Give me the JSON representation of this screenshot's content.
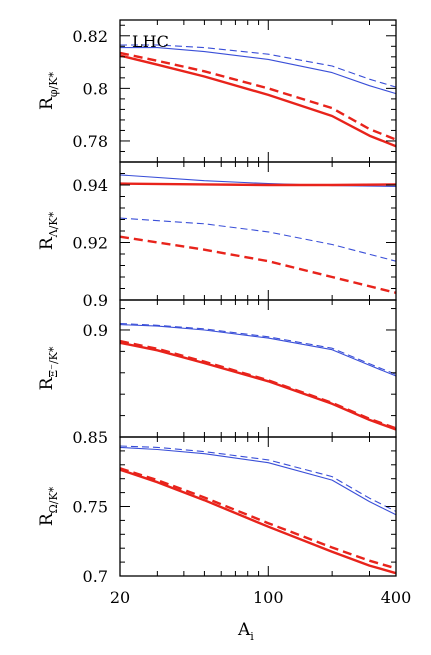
{
  "chart_data": {
    "type": "line",
    "xscale": "log",
    "xlim": [
      20,
      400
    ],
    "x_ticks": [
      20,
      100,
      400
    ],
    "x_tick_labels": [
      "20",
      "100",
      "400"
    ],
    "xlabel": {
      "main": "A",
      "sub": "i"
    },
    "annotation": "LHC",
    "colors": {
      "red": "#e8231b",
      "blue": "#3a4fd8"
    },
    "panels": [
      {
        "ylabel": {
          "main": "R",
          "sub": "φ/K*"
        },
        "ylim": [
          0.772,
          0.826
        ],
        "y_ticks": [
          0.78,
          0.8,
          0.82
        ],
        "y_tick_labels": [
          "0.78",
          "0.8",
          "0.82"
        ],
        "series": [
          {
            "color": "blue",
            "style": "solid",
            "x": [
              20,
              30,
              50,
              100,
              200,
              300,
              400
            ],
            "y": [
              0.8155,
              0.8155,
              0.814,
              0.811,
              0.806,
              0.801,
              0.798
            ]
          },
          {
            "color": "blue",
            "style": "dashed",
            "x": [
              20,
              30,
              50,
              100,
              200,
              300,
              400
            ],
            "y": [
              0.8165,
              0.8165,
              0.8155,
              0.813,
              0.8085,
              0.8035,
              0.8005
            ]
          },
          {
            "color": "red",
            "style": "solid",
            "x": [
              20,
              30,
              50,
              100,
              200,
              300,
              400
            ],
            "y": [
              0.8125,
              0.809,
              0.8045,
              0.7975,
              0.7895,
              0.782,
              0.778
            ]
          },
          {
            "color": "red",
            "style": "dashed",
            "x": [
              20,
              30,
              50,
              100,
              200,
              300,
              400
            ],
            "y": [
              0.8135,
              0.8105,
              0.8065,
              0.8,
              0.7925,
              0.7845,
              0.7805
            ]
          }
        ]
      },
      {
        "ylabel": {
          "main": "R",
          "sub": "Λ/K*"
        },
        "ylim": [
          0.9,
          0.948
        ],
        "y_ticks": [
          0.9,
          0.92,
          0.94
        ],
        "y_tick_labels": [
          "0.9",
          "0.92",
          "0.94"
        ],
        "series": [
          {
            "color": "blue",
            "style": "solid",
            "x": [
              20,
              50,
              100,
              200,
              400
            ],
            "y": [
              0.9435,
              0.9415,
              0.9405,
              0.9398,
              0.9395
            ]
          },
          {
            "color": "red",
            "style": "solid",
            "x": [
              20,
              50,
              100,
              200,
              400
            ],
            "y": [
              0.9405,
              0.9402,
              0.94,
              0.94,
              0.9402
            ]
          },
          {
            "color": "blue",
            "style": "dashed",
            "x": [
              20,
              50,
              100,
              200,
              400
            ],
            "y": [
              0.9285,
              0.9265,
              0.9237,
              0.9193,
              0.9135
            ]
          },
          {
            "color": "red",
            "style": "dashed",
            "x": [
              20,
              50,
              100,
              200,
              400
            ],
            "y": [
              0.922,
              0.9175,
              0.9135,
              0.908,
              0.9025
            ]
          }
        ]
      },
      {
        "ylabel": {
          "main": "R",
          "sub": "Ξ⁻/K*"
        },
        "ylim": [
          0.85,
          0.914
        ],
        "y_ticks": [
          0.85,
          0.9
        ],
        "y_tick_labels": [
          "0.85",
          "0.9"
        ],
        "series": [
          {
            "color": "blue",
            "style": "solid",
            "x": [
              20,
              30,
              50,
              100,
              200,
              300,
              400
            ],
            "y": [
              0.9025,
              0.9018,
              0.9,
              0.8962,
              0.8908,
              0.8835,
              0.8785
            ]
          },
          {
            "color": "blue",
            "style": "dashed",
            "x": [
              20,
              30,
              50,
              100,
              200,
              300,
              400
            ],
            "y": [
              0.903,
              0.9022,
              0.9005,
              0.8968,
              0.8915,
              0.8842,
              0.8792
            ]
          },
          {
            "color": "red",
            "style": "solid",
            "x": [
              20,
              30,
              50,
              100,
              200,
              300,
              400
            ],
            "y": [
              0.894,
              0.8905,
              0.8845,
              0.876,
              0.8655,
              0.858,
              0.8535
            ]
          },
          {
            "color": "red",
            "style": "dashed",
            "x": [
              20,
              30,
              50,
              100,
              200,
              300,
              400
            ],
            "y": [
              0.8948,
              0.8912,
              0.8852,
              0.8765,
              0.866,
              0.8585,
              0.854
            ]
          }
        ]
      },
      {
        "ylabel": {
          "main": "R",
          "sub": "Ω/K*"
        },
        "ylim": [
          0.7,
          0.8
        ],
        "y_ticks": [
          0.7,
          0.75
        ],
        "y_tick_labels": [
          "0.7",
          "0.75"
        ],
        "series": [
          {
            "color": "blue",
            "style": "solid",
            "x": [
              20,
              30,
              50,
              100,
              200,
              300,
              400
            ],
            "y": [
              0.7925,
              0.791,
              0.788,
              0.7815,
              0.769,
              0.7535,
              0.744
            ]
          },
          {
            "color": "blue",
            "style": "dashed",
            "x": [
              20,
              30,
              50,
              100,
              200,
              300,
              400
            ],
            "y": [
              0.7935,
              0.7925,
              0.7895,
              0.7835,
              0.7715,
              0.756,
              0.7465
            ]
          },
          {
            "color": "red",
            "style": "solid",
            "x": [
              20,
              30,
              50,
              100,
              200,
              300,
              400
            ],
            "y": [
              0.7765,
              0.7675,
              0.7545,
              0.7355,
              0.7175,
              0.7075,
              0.702
            ]
          },
          {
            "color": "red",
            "style": "dashed",
            "x": [
              20,
              30,
              50,
              100,
              200,
              300,
              400
            ],
            "y": [
              0.7775,
              0.769,
              0.7565,
              0.738,
              0.7205,
              0.711,
              0.7055
            ]
          }
        ]
      }
    ]
  }
}
